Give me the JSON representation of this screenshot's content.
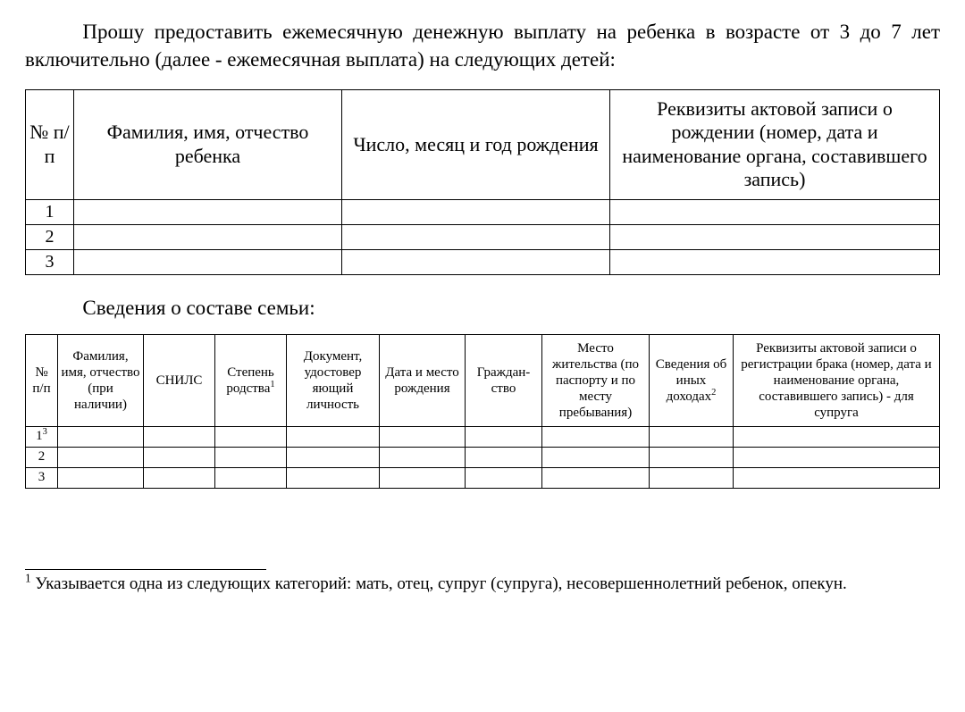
{
  "intro": "Прошу предоставить ежемесячную денежную выплату на ребенка в возрасте от 3 до 7 лет включительно (далее - ежемесячная выплата) на следующих детей:",
  "table1": {
    "headers": {
      "num": "№ п/п",
      "fio": "Фамилия, имя, отчество ребенка",
      "dob": "Число, месяц и год рождения",
      "rec": "Реквизиты актовой записи о рождении (номер, дата и наименование органа, составившего запись)"
    },
    "rows": [
      {
        "num": "1",
        "fio": "",
        "dob": "",
        "rec": ""
      },
      {
        "num": "2",
        "fio": "",
        "dob": "",
        "rec": ""
      },
      {
        "num": "3",
        "fio": "",
        "dob": "",
        "rec": ""
      }
    ]
  },
  "section2_title": "Сведения о составе семьи:",
  "table2": {
    "headers": {
      "num": "№ п/п",
      "fio": "Фамилия, имя, отчество (при наличии)",
      "snils": "СНИЛС",
      "rel_pre": "Степень родства",
      "rel_sup": "1",
      "doc": "Документ, удостовер яющий личность",
      "dob": "Дата и место рождения",
      "cit": "Граждан-ство",
      "addr": "Место жительства (по паспорту и  по месту пребывания)",
      "inc_pre": "Сведения об иных доходах",
      "inc_sup": "2",
      "marr": "Реквизиты актовой записи о регистрации брака (номер, дата и наименование органа, составившего запись) - для супруга"
    },
    "rows": [
      {
        "num_pre": "1",
        "num_sup": "3"
      },
      {
        "num_pre": "2",
        "num_sup": ""
      },
      {
        "num_pre": "3",
        "num_sup": ""
      }
    ]
  },
  "footnote": {
    "sup": "1",
    "text_after_sup": " Указывается одна из следующих категорий: мать, отец, супруг (супруга), несовершеннолетний ребенок, опекун."
  }
}
